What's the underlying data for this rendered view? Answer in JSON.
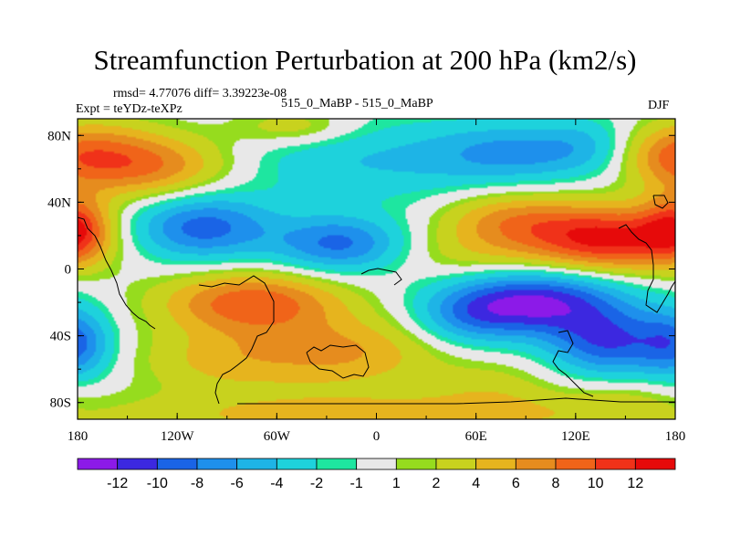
{
  "chart_data": {
    "type": "contour-map",
    "title": "Streamfunction Perturbation at 200 hPa (km2/s)",
    "stats_line": "rmsd= 4.77076 diff= 3.39223e-08",
    "expt_label": "Expt = teYDz-teXPz",
    "case_label": "515_0_MaBP - 515_0_MaBP",
    "season": "DJF",
    "x_ticks": [
      {
        "value": -180,
        "label": "180"
      },
      {
        "value": -120,
        "label": "120W"
      },
      {
        "value": -60,
        "label": "60W"
      },
      {
        "value": 0,
        "label": "0"
      },
      {
        "value": 60,
        "label": "60E"
      },
      {
        "value": 120,
        "label": "120E"
      },
      {
        "value": 180,
        "label": "180"
      }
    ],
    "y_ticks": [
      {
        "value": 80,
        "label": "80N"
      },
      {
        "value": 40,
        "label": "40N"
      },
      {
        "value": 0,
        "label": "0"
      },
      {
        "value": -40,
        "label": "40S"
      },
      {
        "value": -80,
        "label": "80S"
      }
    ],
    "xlim": [
      -180,
      180
    ],
    "ylim": [
      -90,
      90
    ],
    "levels": [
      "-12",
      "-10",
      "-8",
      "-6",
      "-4",
      "-2",
      "-1",
      "1",
      "2",
      "4",
      "6",
      "8",
      "10",
      "12"
    ],
    "colors": [
      "#8C1AE8",
      "#3C28E0",
      "#1A64E6",
      "#1E90EC",
      "#1EB4E6",
      "#1ED2DC",
      "#1EE6A0",
      "#E8E8E8",
      "#96DC1E",
      "#C8D21E",
      "#E6B41E",
      "#E68C1E",
      "#F06419",
      "#F03219",
      "#E60A0A"
    ],
    "centers": [
      {
        "lon": -138,
        "lat": 62,
        "value": 8.5,
        "sx": 36,
        "sy": 14
      },
      {
        "lon": -170,
        "lat": 72,
        "value": 4,
        "sx": 24,
        "sy": 14
      },
      {
        "lon": -50,
        "lat": 85,
        "value": 4,
        "sx": 26,
        "sy": 8
      },
      {
        "lon": 170,
        "lat": 68,
        "value": 3,
        "sx": 18,
        "sy": 12
      },
      {
        "lon": -105,
        "lat": 25,
        "value": -9,
        "sx": 30,
        "sy": 14
      },
      {
        "lon": -22,
        "lat": 15,
        "value": -8.5,
        "sx": 28,
        "sy": 12
      },
      {
        "lon": 0,
        "lat": 65,
        "value": -4,
        "sx": 70,
        "sy": 18
      },
      {
        "lon": 85,
        "lat": 70,
        "value": -5,
        "sx": 34,
        "sy": 12
      },
      {
        "lon": 125,
        "lat": 75,
        "value": -2.5,
        "sx": 20,
        "sy": 12
      },
      {
        "lon": 140,
        "lat": 18,
        "value": 12.5,
        "sx": 35,
        "sy": 14
      },
      {
        "lon": 80,
        "lat": 30,
        "value": 6,
        "sx": 30,
        "sy": 12
      },
      {
        "lon": 60,
        "lat": 8,
        "value": 3,
        "sx": 35,
        "sy": 12
      },
      {
        "lon": -180,
        "lat": 25,
        "value": 8,
        "sx": 14,
        "sy": 14
      },
      {
        "lon": 95,
        "lat": -20,
        "value": -12.5,
        "sx": 38,
        "sy": 14
      },
      {
        "lon": 140,
        "lat": -45,
        "value": -9,
        "sx": 25,
        "sy": 14
      },
      {
        "lon": 55,
        "lat": -30,
        "value": -4,
        "sx": 22,
        "sy": 12
      },
      {
        "lon": -180,
        "lat": -45,
        "value": -7,
        "sx": 15,
        "sy": 15
      },
      {
        "lon": -75,
        "lat": -20,
        "value": 9.5,
        "sx": 38,
        "sy": 13
      },
      {
        "lon": -20,
        "lat": -50,
        "value": 6,
        "sx": 40,
        "sy": 15
      },
      {
        "lon": -95,
        "lat": -55,
        "value": 4,
        "sx": 35,
        "sy": 14
      },
      {
        "lon": 0,
        "lat": -88,
        "value": 5,
        "sx": 120,
        "sy": 10
      },
      {
        "lon": 70,
        "lat": -70,
        "value": 2.5,
        "sx": 28,
        "sy": 12
      },
      {
        "lon": 150,
        "lat": -78,
        "value": 2,
        "sx": 25,
        "sy": 10
      }
    ]
  }
}
